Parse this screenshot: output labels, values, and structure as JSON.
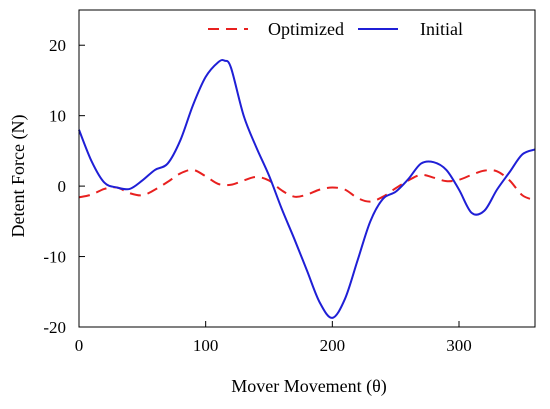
{
  "chart_data": {
    "type": "line",
    "xlabel": "Mover Movement (θ)",
    "ylabel": "Detent Force (N)",
    "xlim": [
      0,
      360
    ],
    "ylim": [
      -20,
      25
    ],
    "xticks": [
      0,
      100,
      200,
      300
    ],
    "yticks": [
      -20,
      -10,
      0,
      10,
      20
    ],
    "grid": false,
    "legend_position": "top-right",
    "series": [
      {
        "name": "Optimized",
        "color": "#e8201f",
        "style": "dashed",
        "x": [
          0,
          10,
          20,
          30,
          40,
          50,
          60,
          70,
          80,
          90,
          100,
          110,
          120,
          130,
          140,
          150,
          160,
          170,
          180,
          190,
          200,
          210,
          220,
          230,
          240,
          250,
          260,
          270,
          280,
          290,
          300,
          310,
          320,
          330,
          340,
          350,
          360
        ],
        "values": [
          -1.6,
          -1.2,
          -0.4,
          -0.2,
          -1.0,
          -1.3,
          -0.5,
          0.6,
          1.8,
          2.3,
          1.4,
          0.3,
          0.2,
          0.8,
          1.3,
          0.8,
          -0.6,
          -1.5,
          -1.2,
          -0.5,
          -0.2,
          -0.5,
          -1.7,
          -2.2,
          -1.5,
          -0.3,
          0.8,
          1.6,
          1.2,
          0.7,
          0.9,
          1.6,
          2.2,
          2.1,
          0.8,
          -1.3,
          -2.0
        ]
      },
      {
        "name": "Initial",
        "color": "#1f1fd6",
        "style": "solid",
        "x": [
          0,
          10,
          20,
          30,
          40,
          50,
          60,
          70,
          80,
          90,
          100,
          110,
          115,
          120,
          130,
          140,
          150,
          160,
          170,
          180,
          190,
          200,
          210,
          220,
          230,
          240,
          250,
          260,
          270,
          280,
          290,
          300,
          310,
          320,
          330,
          340,
          350,
          360
        ],
        "values": [
          8.0,
          3.5,
          0.5,
          -0.2,
          -0.4,
          0.8,
          2.3,
          3.2,
          6.5,
          11.5,
          15.5,
          17.6,
          17.8,
          16.8,
          10.0,
          5.5,
          1.5,
          -3.2,
          -7.5,
          -12.0,
          -16.5,
          -18.7,
          -16.0,
          -10.5,
          -5.0,
          -1.8,
          -0.8,
          1.0,
          3.2,
          3.4,
          2.3,
          -0.5,
          -3.8,
          -3.5,
          -0.5,
          2.0,
          4.5,
          5.2
        ]
      }
    ]
  }
}
